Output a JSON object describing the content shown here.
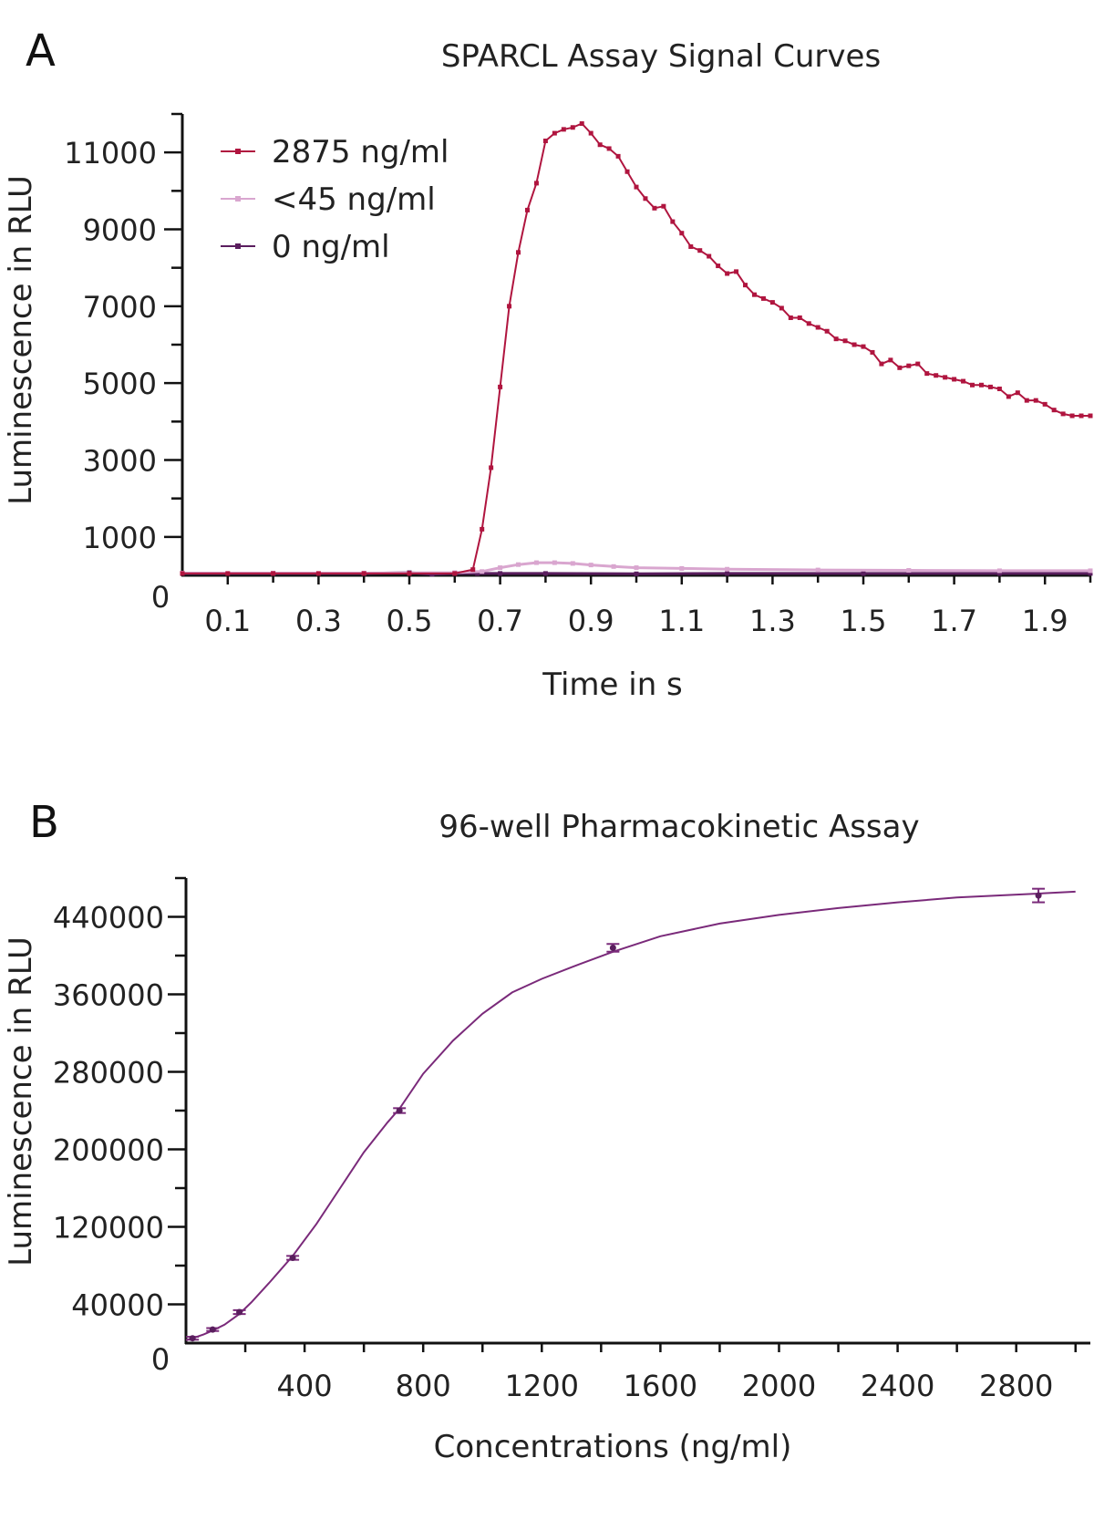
{
  "panels": {
    "a_letter": "A",
    "b_letter": "B"
  },
  "colors": {
    "high": "#b0153f",
    "low": "#d9a6cf",
    "zero": "#5a1e5e",
    "fit": "#7a2a7a",
    "axis": "#111111"
  },
  "chart_data": [
    {
      "type": "line",
      "title": "SPARCL Assay Signal Curves",
      "xlabel": "Time in s",
      "ylabel": "Luminescence in RLU",
      "xlim": [
        0,
        2.0
      ],
      "ylim": [
        0,
        12000
      ],
      "x_ticks": [
        "0.1",
        "0.3",
        "0.5",
        "0.7",
        "0.9",
        "1.1",
        "1.3",
        "1.5",
        "1.7",
        "1.9"
      ],
      "y_ticks": [
        "11000",
        "9000",
        "7000",
        "5000",
        "3000",
        "1000"
      ],
      "y_zero_label": "0",
      "legend_position": "top-left",
      "series": [
        {
          "name": "2875 ng/ml",
          "color_key": "high",
          "x": [
            0.0,
            0.1,
            0.2,
            0.3,
            0.4,
            0.5,
            0.6,
            0.64,
            0.66,
            0.68,
            0.7,
            0.72,
            0.74,
            0.76,
            0.78,
            0.8,
            0.82,
            0.84,
            0.86,
            0.88,
            0.9,
            0.92,
            0.94,
            0.96,
            0.98,
            1.0,
            1.02,
            1.04,
            1.06,
            1.08,
            1.1,
            1.12,
            1.14,
            1.16,
            1.18,
            1.2,
            1.22,
            1.24,
            1.26,
            1.28,
            1.3,
            1.32,
            1.34,
            1.36,
            1.38,
            1.4,
            1.42,
            1.44,
            1.46,
            1.48,
            1.5,
            1.52,
            1.54,
            1.56,
            1.58,
            1.6,
            1.62,
            1.64,
            1.66,
            1.68,
            1.7,
            1.72,
            1.74,
            1.76,
            1.78,
            1.8,
            1.82,
            1.84,
            1.86,
            1.88,
            1.9,
            1.92,
            1.94,
            1.96,
            1.98,
            2.0
          ],
          "y": [
            50,
            50,
            50,
            50,
            50,
            50,
            50,
            150,
            1200,
            2800,
            4900,
            7000,
            8400,
            9500,
            10200,
            11300,
            11500,
            11600,
            11650,
            11750,
            11500,
            11200,
            11100,
            10900,
            10500,
            10100,
            9800,
            9550,
            9600,
            9200,
            8900,
            8550,
            8450,
            8300,
            8050,
            7850,
            7900,
            7550,
            7300,
            7200,
            7100,
            6950,
            6700,
            6700,
            6550,
            6450,
            6350,
            6150,
            6100,
            6000,
            5950,
            5800,
            5500,
            5600,
            5400,
            5450,
            5500,
            5250,
            5200,
            5150,
            5100,
            5050,
            4950,
            4950,
            4900,
            4850,
            4650,
            4750,
            4550,
            4550,
            4450,
            4300,
            4200,
            4150,
            4150,
            4150
          ]
        },
        {
          "name": "<45 ng/ml",
          "color_key": "low",
          "x": [
            0.0,
            0.2,
            0.4,
            0.6,
            0.66,
            0.7,
            0.74,
            0.78,
            0.82,
            0.86,
            0.9,
            0.95,
            1.0,
            1.1,
            1.2,
            1.4,
            1.6,
            1.8,
            2.0
          ],
          "y": [
            60,
            60,
            60,
            70,
            100,
            200,
            280,
            330,
            330,
            310,
            270,
            230,
            200,
            180,
            160,
            140,
            130,
            120,
            120
          ]
        },
        {
          "name": "0 ng/ml",
          "color_key": "zero",
          "x": [
            0.0,
            0.2,
            0.4,
            0.5,
            0.55,
            0.6,
            0.65,
            0.7,
            0.8,
            1.0,
            1.2,
            1.5,
            1.8,
            2.0
          ],
          "y": [
            50,
            50,
            50,
            70,
            30,
            50,
            50,
            50,
            50,
            40,
            50,
            50,
            50,
            50
          ]
        }
      ]
    },
    {
      "type": "scatter",
      "title": "96-well Pharmacokinetic Assay",
      "xlabel": "Concentrations (ng/ml)",
      "ylabel": "Luminescence in RLU",
      "xlim": [
        0,
        3050
      ],
      "ylim": [
        0,
        480000
      ],
      "x_ticks": [
        "400",
        "800",
        "1200",
        "1600",
        "2000",
        "2400",
        "2800"
      ],
      "y_ticks": [
        "440000",
        "360000",
        "280000",
        "200000",
        "120000",
        "40000"
      ],
      "y_zero_label": "0",
      "points": [
        {
          "x": 22,
          "y": 5000,
          "err": 1500
        },
        {
          "x": 90,
          "y": 14000,
          "err": 1500
        },
        {
          "x": 180,
          "y": 32000,
          "err": 2000
        },
        {
          "x": 360,
          "y": 88000,
          "err": 2000
        },
        {
          "x": 720,
          "y": 240000,
          "err": 2500
        },
        {
          "x": 1440,
          "y": 408000,
          "err": 4000
        },
        {
          "x": 2875,
          "y": 462000,
          "err": 7000
        }
      ],
      "fit": {
        "x": [
          0,
          22,
          60,
          90,
          130,
          180,
          220,
          280,
          360,
          440,
          520,
          600,
          680,
          720,
          800,
          900,
          1000,
          1100,
          1200,
          1300,
          1440,
          1600,
          1800,
          2000,
          2200,
          2400,
          2600,
          2875,
          3000
        ],
        "y": [
          3000,
          5000,
          9000,
          13000,
          19000,
          30000,
          42000,
          62000,
          90000,
          123000,
          160000,
          197000,
          228000,
          242000,
          278000,
          312000,
          340000,
          362000,
          376000,
          388000,
          404000,
          420000,
          433000,
          442000,
          449000,
          455000,
          460000,
          464000,
          466000
        ]
      }
    }
  ]
}
